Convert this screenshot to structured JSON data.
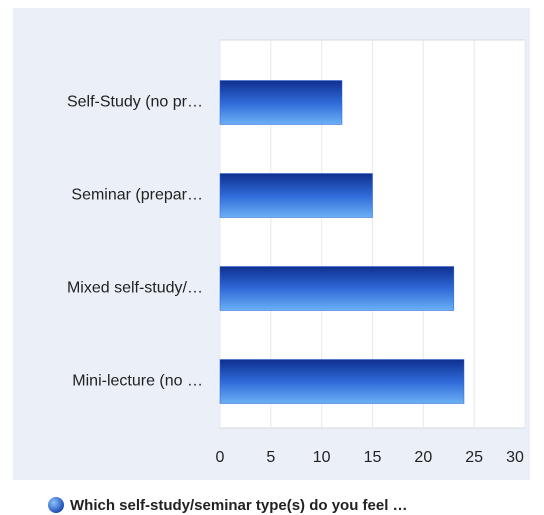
{
  "chart_data": {
    "type": "bar",
    "orientation": "horizontal",
    "categories": [
      "Self-Study (no pr…",
      "Seminar (prepar…",
      "Mixed self-study/…",
      "Mini-lecture (no …"
    ],
    "series": [
      {
        "name": "Which self-study/seminar type(s) do you feel …",
        "color": "#2a63d6",
        "values": [
          12,
          15,
          23,
          24
        ]
      }
    ],
    "xlim": [
      0,
      30
    ],
    "xticks": [
      0,
      5,
      10,
      15,
      20,
      25,
      30
    ],
    "grid": true,
    "legend": "bottom"
  }
}
